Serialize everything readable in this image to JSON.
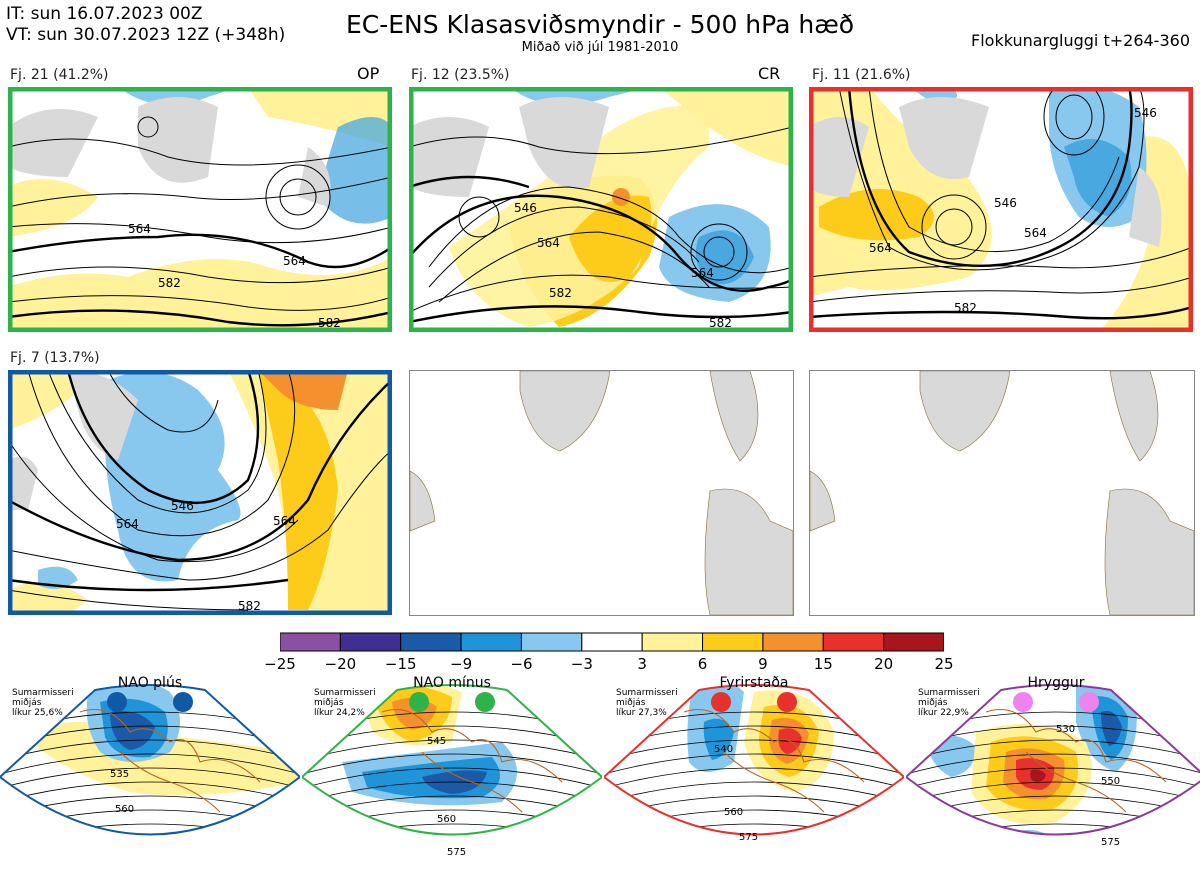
{
  "header": {
    "it_line": "IT: sun 16.07.2023 00Z",
    "vt_line": "VT: sun 30.07.2023 12Z  (+348h)",
    "title": "EC-ENS Klasasviðsmyndir - 500 hPa hæð",
    "subtitle": "Miðað við júl 1981-2010",
    "window_label": "Flokkunargluggi t+264-360"
  },
  "panels": [
    {
      "label": "Fj. 21 (41.2%)",
      "tag": "OP",
      "border_color": "#2db34a",
      "contours": [
        "564",
        "582",
        "564",
        "582"
      ]
    },
    {
      "label": "Fj. 12 (23.5%)",
      "tag": "CR",
      "border_color": "#2db34a",
      "contours": [
        "546",
        "564",
        "582",
        "564",
        "582"
      ]
    },
    {
      "label": "Fj. 11 (21.6%)",
      "tag": "",
      "border_color": "#e8312d",
      "contours": [
        "564",
        "546",
        "564",
        "582",
        "546"
      ]
    },
    {
      "label": "Fj. 7 (13.7%)",
      "tag": "",
      "border_color": "#1059a6",
      "contours": [
        "546",
        "564",
        "564",
        "582"
      ]
    }
  ],
  "colorbar": {
    "colors": [
      "#8b4fa3",
      "#3f2f93",
      "#1a5aa8",
      "#1f94d8",
      "#88c8ee",
      "#ffffff",
      "#fff29a",
      "#fdcc1a",
      "#f5902e",
      "#e8312d",
      "#a8151c"
    ],
    "ticks": [
      "−25",
      "−20",
      "−15",
      "−9",
      "−6",
      "−3",
      "3",
      "6",
      "9",
      "15",
      "20",
      "25"
    ]
  },
  "regimes": [
    {
      "name": "NAO plús",
      "season": "Sumarmisseri",
      "mean": "miðjás",
      "likelihood": "líkur 25,6%",
      "color": "#1059a6",
      "dot_color": "#1059a6",
      "contours": [
        "535",
        "560"
      ]
    },
    {
      "name": "NAO mínus",
      "season": "Sumarmisseri",
      "mean": "miðjás",
      "likelihood": "líkur 24,2%",
      "color": "#2db34a",
      "dot_color": "#2db34a",
      "contours": [
        "545",
        "560",
        "575"
      ]
    },
    {
      "name": "Fyrirstaða",
      "season": "Sumarmisseri",
      "mean": "miðjás",
      "likelihood": "líkur 27,3%",
      "color": "#e8312d",
      "dot_color": "#e8312d",
      "contours": [
        "540",
        "560",
        "575"
      ]
    },
    {
      "name": "Hryggur",
      "season": "Sumarmisseri",
      "mean": "miðjás",
      "likelihood": "líkur 22,9%",
      "color": "#8b3a99",
      "dot_color": "#ee82ee",
      "contours": [
        "530",
        "550",
        "575"
      ]
    }
  ]
}
